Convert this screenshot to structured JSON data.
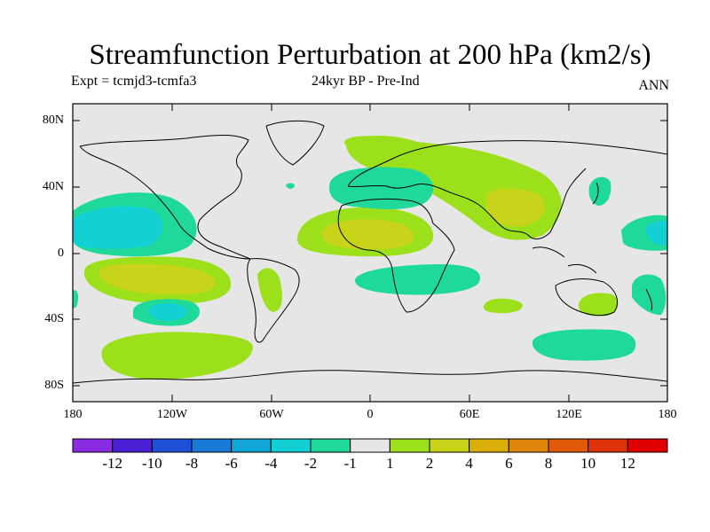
{
  "title": "Streamfunction Perturbation at 200 hPa (km2/s)",
  "subtitle_left": "Expt = tcmjd3-tcmfa3",
  "subtitle_center": "24kyr BP - Pre-Ind",
  "subtitle_right": "ANN",
  "lat_labels": [
    "80N",
    "40N",
    "0",
    "40S",
    "80S"
  ],
  "lon_labels": [
    "180",
    "120W",
    "60W",
    "0",
    "60E",
    "120E",
    "180"
  ],
  "colorbar": {
    "labels": [
      "-12",
      "-10",
      "-8",
      "-6",
      "-4",
      "-2",
      "-1",
      "1",
      "2",
      "4",
      "6",
      "8",
      "10",
      "12"
    ],
    "colors": [
      "#8a2be2",
      "#4b1fd6",
      "#1f4fd6",
      "#1a7ad8",
      "#12a6d8",
      "#12cfd3",
      "#1fd99a",
      "#e6e6e6",
      "#9be01a",
      "#c8d41a",
      "#dcae0a",
      "#e0860a",
      "#e05a0a",
      "#e0320a",
      "#e00000"
    ]
  },
  "map": {
    "background": "#e6e6e6",
    "contour_regions": [
      {
        "level": "-2",
        "color": "#1fd99a"
      },
      {
        "level": "-4",
        "color": "#12cfd3"
      },
      {
        "level": "1",
        "color": "#9be01a"
      },
      {
        "level": "2",
        "color": "#c8d41a"
      }
    ]
  }
}
